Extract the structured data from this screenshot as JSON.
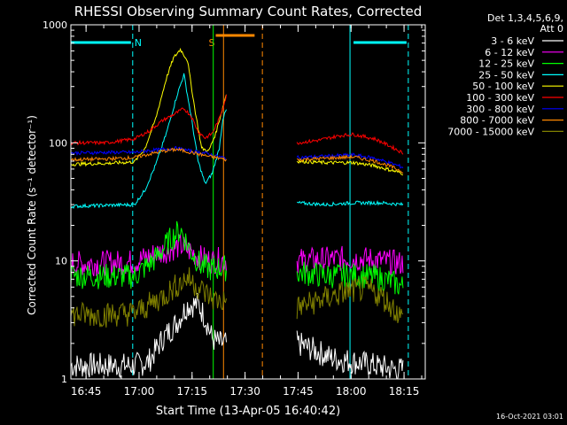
{
  "chart_data": {
    "type": "line",
    "title": "RHESSI Observing Summary Count Rates, Corrected",
    "xlabel": "Start Time (13-Apr-05 16:40:42)",
    "ylabel": "Corrected Count Rate (s⁻¹ detector⁻¹)",
    "yscale": "log",
    "ylim": [
      1,
      1000
    ],
    "xlim": [
      "16:40:42",
      "18:21:00"
    ],
    "y_ticks": [
      "1",
      "10",
      "100",
      "1000"
    ],
    "x_ticks": [
      "16:45",
      "17:00",
      "17:15",
      "17:30",
      "17:45",
      "18:00",
      "18:15"
    ],
    "x_tick_minutes": [
      4.3,
      19.3,
      34.3,
      49.3,
      64.3,
      79.3,
      94.3
    ],
    "gap_minutes": [
      41,
      64
    ],
    "legend_header": [
      "Det 1,3,4,5,6,9,",
      "Att 0"
    ],
    "legend_position": "right",
    "series": [
      {
        "name": "3 - 6 keV",
        "color": "#ffffff",
        "points": [
          [
            0,
            1.3
          ],
          [
            18,
            1.3
          ],
          [
            22,
            1.4
          ],
          [
            26,
            2.2
          ],
          [
            30,
            3.0
          ],
          [
            33,
            4.2
          ],
          [
            36,
            4.3
          ],
          [
            38,
            3.3
          ],
          [
            40,
            2.2
          ],
          [
            42,
            2.0
          ],
          [
            64,
            2.0
          ],
          [
            68,
            1.8
          ],
          [
            74,
            1.5
          ],
          [
            80,
            1.4
          ],
          [
            86,
            1.3
          ],
          [
            92,
            1.2
          ],
          [
            94,
            1.2
          ]
        ]
      },
      {
        "name": "6 - 12 keV",
        "color": "#ff00ff",
        "points": [
          [
            0,
            9.5
          ],
          [
            10,
            9.6
          ],
          [
            18,
            9.8
          ],
          [
            24,
            11.5
          ],
          [
            28,
            12.5
          ],
          [
            31,
            13.5
          ],
          [
            34,
            12.0
          ],
          [
            37,
            10.5
          ],
          [
            40,
            10.0
          ],
          [
            42,
            10.2
          ],
          [
            64,
            10.0
          ],
          [
            72,
            10.3
          ],
          [
            80,
            10.5
          ],
          [
            86,
            10.2
          ],
          [
            90,
            9.8
          ],
          [
            94,
            9.5
          ]
        ]
      },
      {
        "name": "12 - 25 keV",
        "color": "#00ff00",
        "points": [
          [
            0,
            7.5
          ],
          [
            10,
            7.4
          ],
          [
            18,
            7.4
          ],
          [
            24,
            10.5
          ],
          [
            28,
            15.0
          ],
          [
            31,
            18.5
          ],
          [
            34,
            12.0
          ],
          [
            37,
            9.0
          ],
          [
            40,
            8.5
          ],
          [
            42,
            8.7
          ],
          [
            64,
            8.0
          ],
          [
            72,
            7.5
          ],
          [
            80,
            7.5
          ],
          [
            86,
            7.3
          ],
          [
            90,
            6.8
          ],
          [
            94,
            6.0
          ]
        ]
      },
      {
        "name": "25 - 50 keV",
        "color": "#00ffff",
        "points": [
          [
            0,
            29
          ],
          [
            18,
            30
          ],
          [
            21,
            40
          ],
          [
            24,
            65
          ],
          [
            27,
            120
          ],
          [
            30,
            250
          ],
          [
            32,
            380
          ],
          [
            34,
            170
          ],
          [
            36,
            70
          ],
          [
            38,
            45
          ],
          [
            40,
            55
          ],
          [
            42,
            90
          ],
          [
            43,
            160
          ],
          [
            44,
            190
          ],
          [
            64,
            31
          ],
          [
            72,
            30
          ],
          [
            80,
            31
          ],
          [
            88,
            31
          ],
          [
            94,
            30
          ]
        ]
      },
      {
        "name": "50 - 100 keV",
        "color": "#ffff00",
        "points": [
          [
            0,
            66
          ],
          [
            10,
            67
          ],
          [
            18,
            69
          ],
          [
            21,
            90
          ],
          [
            24,
            160
          ],
          [
            27,
            350
          ],
          [
            29,
            520
          ],
          [
            31,
            620
          ],
          [
            33,
            500
          ],
          [
            35,
            200
          ],
          [
            37,
            90
          ],
          [
            39,
            85
          ],
          [
            41,
            120
          ],
          [
            43,
            200
          ],
          [
            44,
            260
          ],
          [
            64,
            70
          ],
          [
            72,
            68
          ],
          [
            80,
            68
          ],
          [
            86,
            64
          ],
          [
            94,
            55
          ]
        ]
      },
      {
        "name": "100 - 300 keV",
        "color": "#ff0000",
        "points": [
          [
            0,
            100
          ],
          [
            10,
            100
          ],
          [
            18,
            108
          ],
          [
            22,
            125
          ],
          [
            26,
            155
          ],
          [
            30,
            180
          ],
          [
            32,
            195
          ],
          [
            34,
            170
          ],
          [
            36,
            125
          ],
          [
            38,
            110
          ],
          [
            40,
            120
          ],
          [
            42,
            160
          ],
          [
            44,
            250
          ],
          [
            64,
            100
          ],
          [
            70,
            105
          ],
          [
            76,
            115
          ],
          [
            80,
            118
          ],
          [
            86,
            108
          ],
          [
            90,
            95
          ],
          [
            94,
            82
          ]
        ]
      },
      {
        "name": "300 - 800 keV",
        "color": "#0000ff",
        "points": [
          [
            0,
            82
          ],
          [
            10,
            83
          ],
          [
            18,
            83
          ],
          [
            22,
            86
          ],
          [
            26,
            88
          ],
          [
            30,
            90
          ],
          [
            34,
            85
          ],
          [
            38,
            82
          ],
          [
            42,
            76
          ],
          [
            44,
            74
          ],
          [
            64,
            75
          ],
          [
            72,
            77
          ],
          [
            80,
            79
          ],
          [
            86,
            74
          ],
          [
            90,
            68
          ],
          [
            94,
            62
          ]
        ]
      },
      {
        "name": "800 - 7000 keV",
        "color": "#ff8800",
        "points": [
          [
            0,
            72
          ],
          [
            10,
            73
          ],
          [
            18,
            75
          ],
          [
            22,
            80
          ],
          [
            26,
            85
          ],
          [
            30,
            88
          ],
          [
            34,
            83
          ],
          [
            38,
            78
          ],
          [
            42,
            74
          ],
          [
            44,
            72
          ],
          [
            64,
            72
          ],
          [
            72,
            74
          ],
          [
            80,
            76
          ],
          [
            86,
            70
          ],
          [
            90,
            64
          ],
          [
            94,
            57
          ]
        ]
      },
      {
        "name": "7000 - 15000 keV",
        "color": "#808000",
        "points": [
          [
            0,
            3.5
          ],
          [
            10,
            3.5
          ],
          [
            18,
            3.6
          ],
          [
            22,
            4.2
          ],
          [
            26,
            5.0
          ],
          [
            30,
            6.2
          ],
          [
            33,
            7.2
          ],
          [
            36,
            6.0
          ],
          [
            40,
            4.8
          ],
          [
            42,
            4.6
          ],
          [
            64,
            4.0
          ],
          [
            72,
            4.8
          ],
          [
            78,
            5.5
          ],
          [
            84,
            5.8
          ],
          [
            88,
            5.0
          ],
          [
            92,
            3.8
          ],
          [
            94,
            3.2
          ]
        ]
      }
    ],
    "status_bars": [
      {
        "label": "N",
        "color": "#00ffff",
        "range_min": [
          0,
          17
        ]
      },
      {
        "label": "",
        "color": "#00ffff",
        "range_min": [
          80,
          95
        ]
      },
      {
        "label": "S",
        "color": "#ff8800",
        "range_min": [
          41,
          52
        ]
      }
    ],
    "vertical_markers": [
      {
        "minute": 17.5,
        "color": "#00ffff",
        "style": "dashed"
      },
      {
        "minute": 79,
        "color": "#00ffff",
        "style": "solid"
      },
      {
        "minute": 95.5,
        "color": "#00ffff",
        "style": "dashed"
      },
      {
        "minute": 40.3,
        "color": "#00ff00",
        "style": "solid"
      },
      {
        "minute": 43.2,
        "color": "#ff8800",
        "style": "solid"
      },
      {
        "minute": 54.2,
        "color": "#ff8800",
        "style": "dashed"
      }
    ],
    "timestamp": "16-Oct-2021 03:01"
  }
}
